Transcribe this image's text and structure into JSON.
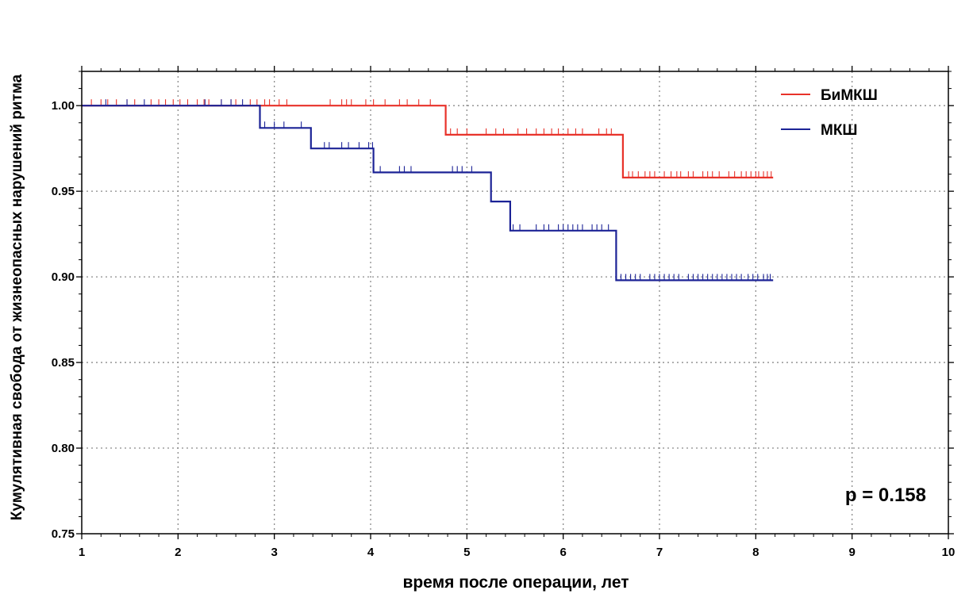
{
  "chart_data": {
    "type": "line",
    "subtype": "kaplan-meier",
    "title": "",
    "xlabel": "время после операции, лет",
    "ylabel": "Кумулятивная свобода от жизнеопасных нарушений ритма",
    "xlim": [
      1,
      10
    ],
    "ylim": [
      0.75,
      1.02
    ],
    "x_ticks": [
      1,
      2,
      3,
      4,
      5,
      6,
      7,
      8,
      9,
      10
    ],
    "y_ticks": [
      0.75,
      0.8,
      0.85,
      0.9,
      0.95,
      1.0
    ],
    "y_tick_labels": [
      "0.75",
      "0.80",
      "0.85",
      "0.90",
      "0.95",
      "1.00"
    ],
    "grid": true,
    "legend_position": "top-right",
    "annotation": "p = 0.158",
    "series": [
      {
        "name": "БиМКШ",
        "color": "#e8322a",
        "steps": [
          [
            1.0,
            1.0
          ],
          [
            4.78,
            0.983
          ],
          [
            6.62,
            0.958
          ],
          [
            8.18,
            0.958
          ]
        ],
        "censored": [
          1.1,
          1.2,
          1.27,
          1.36,
          1.47,
          1.55,
          1.72,
          1.8,
          1.87,
          1.95,
          2.02,
          2.1,
          2.2,
          2.27,
          2.32,
          2.45,
          2.55,
          2.6,
          2.75,
          2.82,
          2.9,
          2.95,
          3.05,
          3.13,
          3.58,
          3.7,
          3.75,
          3.8,
          3.95,
          4.03,
          4.15,
          4.3,
          4.38,
          4.5,
          4.62,
          4.83,
          4.9,
          5.0,
          5.2,
          5.3,
          5.38,
          5.53,
          5.62,
          5.72,
          5.8,
          5.88,
          5.95,
          6.05,
          6.13,
          6.2,
          6.37,
          6.45,
          6.5,
          6.68,
          6.72,
          6.78,
          6.85,
          6.9,
          6.95,
          7.05,
          7.12,
          7.18,
          7.22,
          7.3,
          7.35,
          7.45,
          7.5,
          7.55,
          7.62,
          7.72,
          7.78,
          7.85,
          7.9,
          7.95,
          8.0,
          8.03,
          8.08,
          8.12,
          8.16
        ]
      },
      {
        "name": "МКШ",
        "color": "#1c2396",
        "steps": [
          [
            1.0,
            1.0
          ],
          [
            2.85,
            0.987
          ],
          [
            3.38,
            0.975
          ],
          [
            4.03,
            0.961
          ],
          [
            5.25,
            0.944
          ],
          [
            5.45,
            0.927
          ],
          [
            6.55,
            0.898
          ],
          [
            8.18,
            0.898
          ]
        ],
        "censored": [
          1.25,
          1.47,
          1.65,
          2.28,
          2.45,
          2.55,
          2.67,
          2.9,
          3.0,
          3.1,
          3.28,
          3.52,
          3.57,
          3.7,
          3.77,
          3.88,
          3.98,
          4.02,
          4.1,
          4.3,
          4.35,
          4.42,
          4.85,
          4.9,
          4.95,
          5.05,
          5.48,
          5.55,
          5.72,
          5.8,
          5.85,
          5.95,
          6.0,
          6.05,
          6.1,
          6.15,
          6.2,
          6.3,
          6.35,
          6.4,
          6.47,
          6.6,
          6.65,
          6.7,
          6.75,
          6.8,
          6.9,
          6.95,
          7.0,
          7.05,
          7.1,
          7.15,
          7.2,
          7.3,
          7.35,
          7.4,
          7.45,
          7.5,
          7.55,
          7.6,
          7.65,
          7.7,
          7.75,
          7.8,
          7.85,
          7.92,
          7.97,
          8.02,
          8.08,
          8.12,
          8.15
        ]
      }
    ]
  }
}
